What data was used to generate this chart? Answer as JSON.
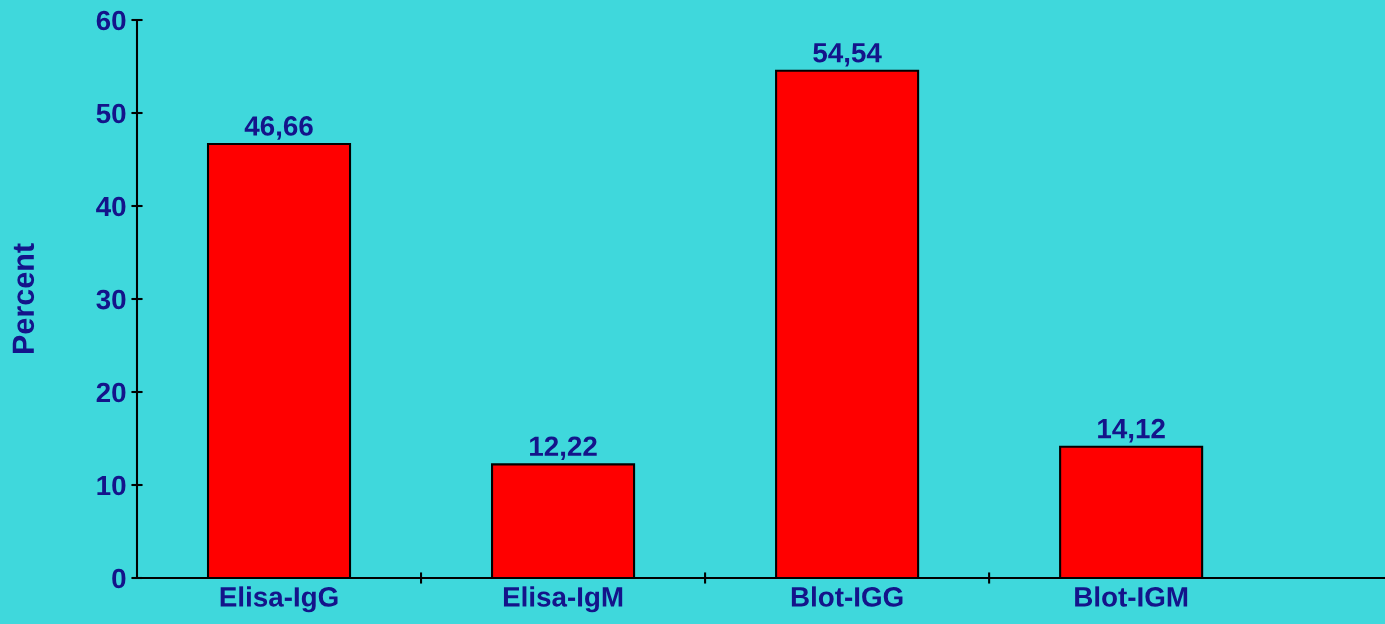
{
  "chart_data": {
    "type": "bar",
    "ylabel": "Percent",
    "categories": [
      "Elisa-IgG",
      "Elisa-IgM",
      "Blot-IGG",
      "Blot-IGM"
    ],
    "values": [
      46.66,
      12.22,
      54.54,
      14.12
    ],
    "value_labels": [
      "46,66",
      "12,22",
      "54,54",
      "14,12"
    ],
    "color": "#ff0000",
    "ylim": [
      0,
      60
    ],
    "yticks": [
      0,
      10,
      20,
      30,
      40,
      50,
      60
    ],
    "grid": false,
    "legend": false
  }
}
